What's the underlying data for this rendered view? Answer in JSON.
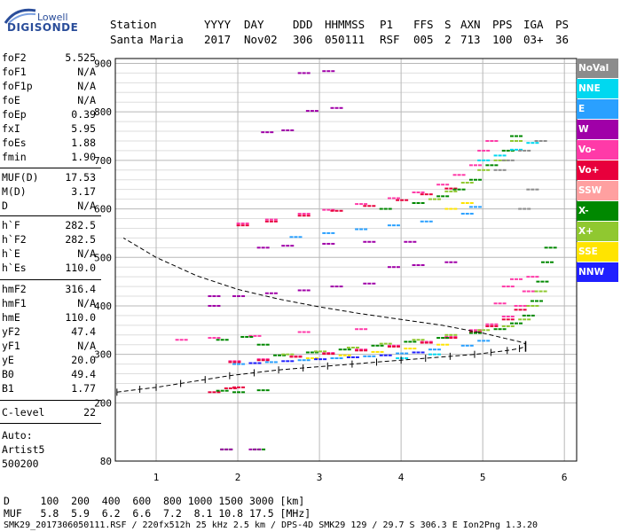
{
  "logo": {
    "top": "Lowell",
    "bottom": "DIGISONDE"
  },
  "header": {
    "labels": [
      "Station",
      "YYYY",
      "DAY",
      "DDD",
      "HHMMSS",
      "P1",
      "FFS",
      "S",
      "AXN",
      "PPS",
      "IGA",
      "PS"
    ],
    "values": [
      "Santa Maria",
      "2017",
      "Nov02",
      "306",
      "050111",
      "RSF",
      "005",
      "2",
      "713",
      "100",
      "03+",
      "36"
    ]
  },
  "params": [
    {
      "label": "foF2",
      "value": "5.525"
    },
    {
      "label": "foF1",
      "value": "N/A"
    },
    {
      "label": "foF1p",
      "value": "N/A"
    },
    {
      "label": "foE",
      "value": "N/A"
    },
    {
      "label": "foEp",
      "value": "0.39"
    },
    {
      "label": "fxI",
      "value": "5.95"
    },
    {
      "label": "foEs",
      "value": "1.88"
    },
    {
      "label": "fmin",
      "value": "1.90"
    },
    {
      "label": "MUF(D)",
      "value": "17.53"
    },
    {
      "label": "M(D)",
      "value": "3.17"
    },
    {
      "label": "D",
      "value": "N/A"
    },
    {
      "label": "h`F",
      "value": "282.5"
    },
    {
      "label": "h`F2",
      "value": "282.5"
    },
    {
      "label": "h`E",
      "value": "N/A"
    },
    {
      "label": "h`Es",
      "value": "110.0"
    },
    {
      "label": "hmF2",
      "value": "316.4"
    },
    {
      "label": "hmF1",
      "value": "N/A"
    },
    {
      "label": "hmE",
      "value": "110.0"
    },
    {
      "label": "yF2",
      "value": "47.4"
    },
    {
      "label": "yF1",
      "value": "N/A"
    },
    {
      "label": "yE",
      "value": "20.0"
    },
    {
      "label": "B0",
      "value": "49.4"
    },
    {
      "label": "B1",
      "value": "1.77"
    },
    {
      "label": "C-level",
      "value": "22"
    }
  ],
  "autoscale": {
    "line1": "Auto:",
    "line2": "Artist5",
    "line3": "500200"
  },
  "legend": [
    {
      "label": "NoVal",
      "color": "#8c8c8c"
    },
    {
      "label": "NNE",
      "color": "#00d8f0"
    },
    {
      "label": "E",
      "color": "#2aa0ff"
    },
    {
      "label": "W",
      "color": "#a000a8"
    },
    {
      "label": "Vo-",
      "color": "#ff3aa8"
    },
    {
      "label": "Vo+",
      "color": "#e8003c"
    },
    {
      "label": "SSW",
      "color": "#ffa0a0"
    },
    {
      "label": "X-",
      "color": "#008800"
    },
    {
      "label": "X+",
      "color": "#90c830"
    },
    {
      "label": "SSE",
      "color": "#ffe400"
    },
    {
      "label": "NNW",
      "color": "#2020ff"
    }
  ],
  "footer": {
    "row1": "D     100  200  400  600  800 1000 1500 3000 [km]",
    "row2": "MUF   5.8  5.9  6.2  6.6  7.2  8.1 10.8 17.5 [MHz]",
    "row3": "SMK29_2017306050111.RSF / 220fx512h 25 kHz 2.5 km / DPS-4D SMK29 129 / 29.7 S 306.3 E Ion2Png 1.3.20"
  },
  "chart_data": {
    "type": "scatter",
    "x_ticks": [
      1,
      2,
      3,
      4,
      5,
      6
    ],
    "y_ticks": [
      80,
      200,
      300,
      400,
      500,
      600,
      700,
      800,
      900
    ],
    "xlim": [
      0.5,
      6.15
    ],
    "ylim": [
      80,
      910
    ],
    "y_grid_step": 20,
    "grid": true,
    "series": [
      {
        "name": "Vo-",
        "color": "#ff3aa8",
        "points": [
          [
            1.95,
            286
          ],
          [
            2.3,
            290
          ],
          [
            2.7,
            296
          ],
          [
            3.1,
            303
          ],
          [
            3.5,
            310
          ],
          [
            3.9,
            318
          ],
          [
            4.3,
            326
          ],
          [
            4.6,
            336
          ],
          [
            4.9,
            350
          ],
          [
            5.1,
            362
          ],
          [
            5.3,
            378
          ],
          [
            5.45,
            400
          ],
          [
            5.55,
            430
          ],
          [
            5.6,
            460
          ],
          [
            2.05,
            570
          ],
          [
            2.4,
            578
          ],
          [
            2.8,
            590
          ],
          [
            3.1,
            598
          ],
          [
            3.5,
            610
          ],
          [
            3.9,
            622
          ],
          [
            4.2,
            634
          ],
          [
            4.5,
            650
          ],
          [
            4.7,
            670
          ],
          [
            4.9,
            690
          ],
          [
            5.0,
            720
          ],
          [
            5.1,
            740
          ],
          [
            1.3,
            330
          ],
          [
            1.7,
            334
          ],
          [
            2.2,
            338
          ],
          [
            2.8,
            346
          ],
          [
            3.5,
            352
          ],
          [
            5.2,
            405
          ],
          [
            5.3,
            440
          ],
          [
            5.4,
            455
          ]
        ]
      },
      {
        "name": "Vo+",
        "color": "#e8003c",
        "points": [
          [
            1.95,
            284
          ],
          [
            2.3,
            288
          ],
          [
            2.7,
            295
          ],
          [
            3.1,
            301
          ],
          [
            3.5,
            308
          ],
          [
            3.9,
            316
          ],
          [
            4.3,
            324
          ],
          [
            4.6,
            334
          ],
          [
            4.9,
            346
          ],
          [
            5.1,
            358
          ],
          [
            5.3,
            372
          ],
          [
            5.45,
            392
          ],
          [
            2.05,
            566
          ],
          [
            2.4,
            574
          ],
          [
            2.8,
            586
          ],
          [
            3.2,
            596
          ],
          [
            3.6,
            606
          ],
          [
            4.0,
            618
          ],
          [
            4.3,
            630
          ],
          [
            4.6,
            642
          ],
          [
            1.7,
            222
          ],
          [
            1.9,
            230
          ],
          [
            2.0,
            232
          ]
        ]
      },
      {
        "name": "X-",
        "color": "#008800",
        "points": [
          [
            2.5,
            298
          ],
          [
            2.9,
            304
          ],
          [
            3.3,
            310
          ],
          [
            3.7,
            318
          ],
          [
            4.1,
            326
          ],
          [
            4.5,
            334
          ],
          [
            4.9,
            344
          ],
          [
            5.2,
            352
          ],
          [
            5.4,
            364
          ],
          [
            5.55,
            380
          ],
          [
            5.65,
            410
          ],
          [
            5.72,
            450
          ],
          [
            5.78,
            490
          ],
          [
            5.82,
            520
          ],
          [
            3.8,
            600
          ],
          [
            4.2,
            612
          ],
          [
            4.5,
            626
          ],
          [
            4.7,
            640
          ],
          [
            4.9,
            660
          ],
          [
            5.1,
            690
          ],
          [
            5.3,
            720
          ],
          [
            5.4,
            750
          ],
          [
            1.8,
            225
          ],
          [
            2.0,
            222
          ],
          [
            2.3,
            226
          ],
          [
            1.8,
            330
          ],
          [
            2.1,
            336
          ],
          [
            2.3,
            320
          ],
          [
            1.85,
            104
          ],
          [
            2.25,
            104
          ]
        ]
      },
      {
        "name": "X+",
        "color": "#90c830",
        "points": [
          [
            2.6,
            300
          ],
          [
            3.0,
            306
          ],
          [
            3.4,
            314
          ],
          [
            3.8,
            322
          ],
          [
            4.2,
            330
          ],
          [
            4.6,
            340
          ],
          [
            5.0,
            350
          ],
          [
            5.3,
            358
          ],
          [
            5.5,
            372
          ],
          [
            5.6,
            400
          ],
          [
            5.7,
            430
          ],
          [
            4.4,
            620
          ],
          [
            4.6,
            636
          ],
          [
            4.8,
            654
          ],
          [
            5.0,
            680
          ],
          [
            5.2,
            700
          ],
          [
            5.4,
            740
          ]
        ]
      },
      {
        "name": "E",
        "color": "#2aa0ff",
        "points": [
          [
            2.0,
            280
          ],
          [
            2.4,
            284
          ],
          [
            2.8,
            288
          ],
          [
            3.2,
            292
          ],
          [
            3.6,
            296
          ],
          [
            4.0,
            302
          ],
          [
            4.4,
            310
          ],
          [
            4.8,
            318
          ],
          [
            5.0,
            328
          ],
          [
            2.7,
            542
          ],
          [
            3.1,
            550
          ],
          [
            3.5,
            558
          ],
          [
            3.9,
            566
          ],
          [
            4.3,
            574
          ],
          [
            4.8,
            590
          ],
          [
            4.9,
            604
          ]
        ]
      },
      {
        "name": "W",
        "color": "#a000a8",
        "points": [
          [
            2.0,
            420
          ],
          [
            2.4,
            426
          ],
          [
            2.8,
            432
          ],
          [
            3.2,
            440
          ],
          [
            3.6,
            446
          ],
          [
            1.7,
            420
          ],
          [
            1.7,
            400
          ],
          [
            3.9,
            480
          ],
          [
            4.2,
            484
          ],
          [
            4.6,
            490
          ],
          [
            2.3,
            520
          ],
          [
            2.6,
            524
          ],
          [
            3.1,
            528
          ],
          [
            3.6,
            532
          ],
          [
            4.1,
            532
          ],
          [
            2.8,
            880
          ],
          [
            3.1,
            884
          ],
          [
            2.9,
            802
          ],
          [
            3.2,
            808
          ],
          [
            2.35,
            758
          ],
          [
            2.6,
            762
          ],
          [
            1.85,
            104
          ],
          [
            2.2,
            104
          ]
        ]
      },
      {
        "name": "NNE",
        "color": "#00d8f0",
        "points": [
          [
            5.0,
            700
          ],
          [
            5.2,
            710
          ],
          [
            5.4,
            722
          ],
          [
            5.6,
            736
          ],
          [
            4.0,
            292
          ],
          [
            4.4,
            300
          ]
        ]
      },
      {
        "name": "SSE",
        "color": "#ffe400",
        "points": [
          [
            2.9,
            292
          ],
          [
            3.3,
            298
          ],
          [
            3.7,
            305
          ],
          [
            4.1,
            312
          ],
          [
            4.5,
            320
          ],
          [
            4.6,
            600
          ],
          [
            4.8,
            612
          ]
        ]
      },
      {
        "name": "NNW",
        "color": "#2020ff",
        "points": [
          [
            2.2,
            282
          ],
          [
            2.6,
            286
          ],
          [
            3.0,
            290
          ],
          [
            3.4,
            294
          ],
          [
            3.8,
            298
          ],
          [
            4.2,
            304
          ]
        ]
      },
      {
        "name": "NoVal",
        "color": "#8c8c8c",
        "points": [
          [
            5.2,
            680
          ],
          [
            5.3,
            700
          ],
          [
            5.5,
            720
          ],
          [
            5.7,
            740
          ],
          [
            5.5,
            600
          ],
          [
            5.6,
            640
          ]
        ]
      }
    ],
    "profile_curve": [
      [
        0.52,
        222
      ],
      [
        0.8,
        228
      ],
      [
        1.0,
        232
      ],
      [
        1.3,
        240
      ],
      [
        1.6,
        248
      ],
      [
        1.9,
        256
      ],
      [
        2.2,
        262
      ],
      [
        2.5,
        268
      ],
      [
        2.8,
        272
      ],
      [
        3.1,
        276
      ],
      [
        3.4,
        280
      ],
      [
        3.7,
        284
      ],
      [
        4.0,
        288
      ],
      [
        4.3,
        292
      ],
      [
        4.6,
        296
      ],
      [
        4.9,
        300
      ],
      [
        5.1,
        304
      ],
      [
        5.3,
        308
      ],
      [
        5.45,
        312
      ],
      [
        5.525,
        316.4
      ],
      [
        5.52,
        322
      ],
      [
        5.45,
        326
      ],
      [
        5.3,
        332
      ],
      [
        5.0,
        344
      ],
      [
        4.5,
        360
      ],
      [
        4.0,
        372
      ],
      [
        3.5,
        384
      ],
      [
        3.0,
        398
      ],
      [
        2.5,
        414
      ],
      [
        2.0,
        434
      ],
      [
        1.5,
        462
      ],
      [
        1.0,
        500
      ],
      [
        0.6,
        540
      ]
    ]
  }
}
